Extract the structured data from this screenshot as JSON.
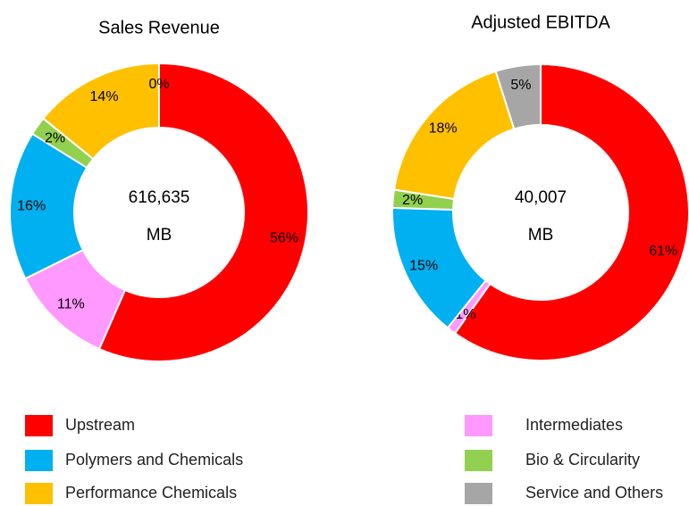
{
  "chart_data": [
    {
      "type": "pie",
      "title": "Sales Revenue",
      "center_text": [
        "616,635",
        "MB"
      ],
      "values": [
        56,
        11,
        16,
        2,
        14,
        0
      ],
      "value_labels": [
        "56%",
        "11%",
        "16%",
        "2%",
        "14%",
        "0%"
      ]
    },
    {
      "type": "pie",
      "title": "Adjusted EBITDA",
      "center_text": [
        "40,007",
        "MB"
      ],
      "values": [
        61,
        -1,
        15,
        2,
        18,
        5
      ],
      "value_labels": [
        "61%",
        "-1%",
        "15%",
        "2%",
        "18%",
        "5%"
      ]
    }
  ],
  "legend": {
    "names": [
      "Upstream",
      "Intermediates",
      "Polymers and Chemicals",
      "Bio & Circularity",
      "Performance Chemicals",
      "Service and Others"
    ],
    "colors": [
      "#ff0000",
      "#ff99ff",
      "#00b0f0",
      "#92d050",
      "#ffc000",
      "#a6a6a6"
    ]
  }
}
